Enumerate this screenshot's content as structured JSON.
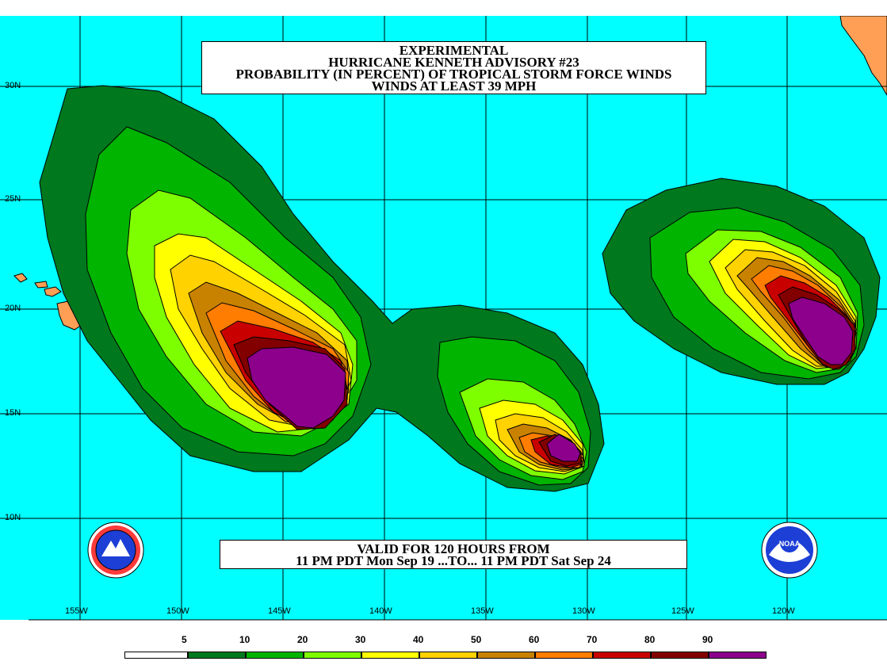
{
  "title": {
    "line1": "EXPERIMENTAL",
    "line2": "HURRICANE KENNETH ADVISORY #23",
    "line3": "PROBABILITY (IN PERCENT) OF TROPICAL STORM FORCE WINDS",
    "line4": "WINDS AT LEAST 39 MPH"
  },
  "validity": {
    "line1": "VALID FOR 120 HOURS FROM",
    "line2": "11 PM PDT Mon Sep 19 ...TO... 11 PM PDT Sat Sep 24"
  },
  "latitude_labels": [
    "30N",
    "25N",
    "20N",
    "15N",
    "10N"
  ],
  "longitude_labels": [
    "155W",
    "150W",
    "145W",
    "140W",
    "135W",
    "130W",
    "125W",
    "120W"
  ],
  "legend": {
    "thresholds": [
      "5",
      "10",
      "20",
      "30",
      "40",
      "50",
      "60",
      "70",
      "80",
      "90"
    ],
    "colors": [
      "#ffffff",
      "#00781e",
      "#00b400",
      "#7eff00",
      "#ffff00",
      "#ffd200",
      "#c88200",
      "#ff7d00",
      "#c80000",
      "#820000",
      "#8c008c"
    ]
  },
  "colors": {
    "ocean": "#00ffff",
    "land": "#ff9f55",
    "hawaii": "#ff9f55"
  },
  "logos": [
    "nws-logo-icon",
    "noaa-logo-icon"
  ]
}
